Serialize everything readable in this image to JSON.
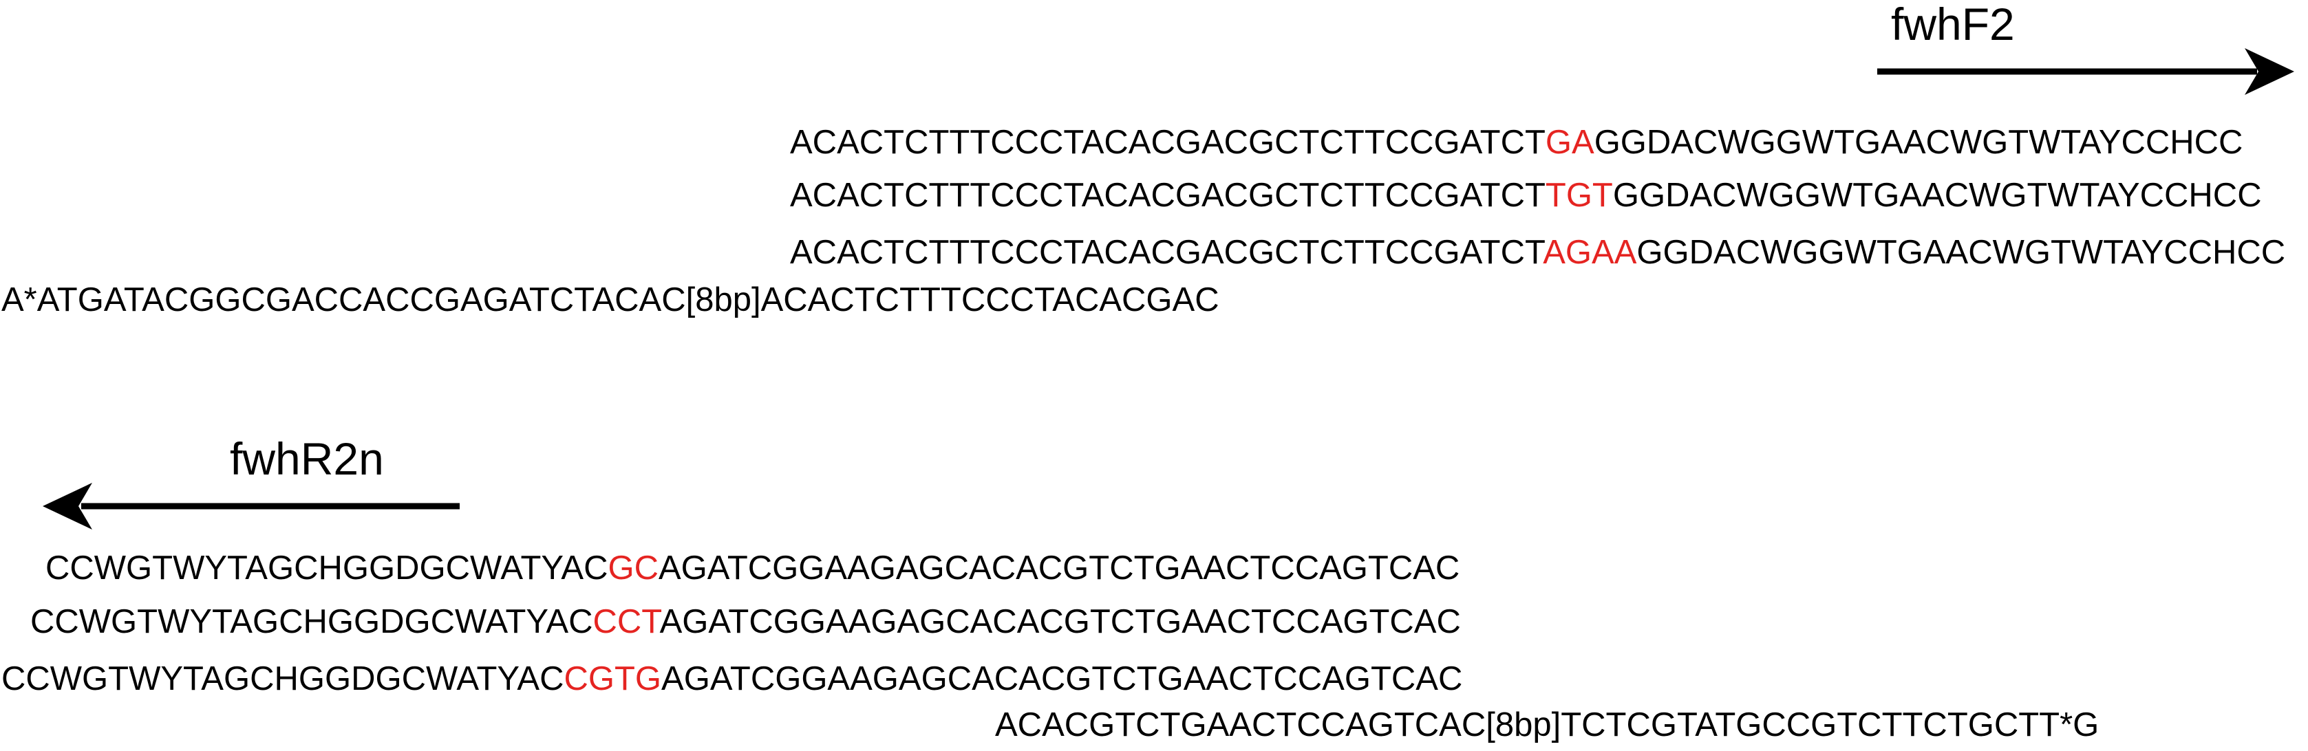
{
  "colors": {
    "text": "#000000",
    "highlight": "#e52421",
    "arrow": "#000000"
  },
  "forward": {
    "primer_label": "fwhF2",
    "rows": [
      {
        "pre": "ACACTCTTTCCCTACACGACGCTCTTCCGATCT",
        "spacer": "GA",
        "post": "GGDACWGGWTGAACWGTWTAYCCHCC"
      },
      {
        "pre": "ACACTCTTTCCCTACACGACGCTCTTCCGATCT",
        "spacer": "TGT",
        "post": "GGDACWGGWTGAACWGTWTAYCCHCC"
      },
      {
        "pre": "ACACTCTTTCCCTACACGACGCTCTTCCGATCT",
        "spacer": "AGAA",
        "post": "GGDACWGGWTGAACWGTWTAYCCHCC"
      }
    ],
    "adapter": "A*ATGATACGGCGACCACCGAGATCTACAC[8bp]ACACTCTTTCCCTACACGAC"
  },
  "reverse": {
    "primer_label": "fwhR2n",
    "rows": [
      {
        "pre": "CCWGTWYTAGCHGGDGCWATYAC",
        "spacer": "GC",
        "post": "AGATCGGAAGAGCACACGTCTGAACTCCAGTCAC"
      },
      {
        "pre": "CCWGTWYTAGCHGGDGCWATYAC",
        "spacer": "CCT",
        "post": "AGATCGGAAGAGCACACGTCTGAACTCCAGTCAC"
      },
      {
        "pre": "CCWGTWYTAGCHGGDGCWATYAC",
        "spacer": "CGTG",
        "post": "AGATCGGAAGAGCACACGTCTGAACTCCAGTCAC"
      }
    ],
    "adapter": "ACACGTCTGAACTCCAGTCAC[8bp]TCTCGTATGCCGTCTTCTGCTT*G"
  }
}
